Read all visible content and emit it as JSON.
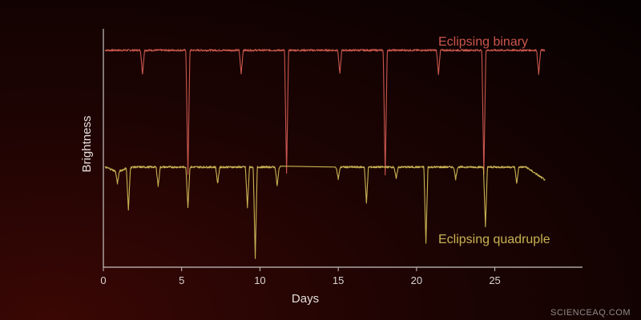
{
  "chart_data": {
    "type": "line",
    "xlabel": "Days",
    "ylabel": "Brightness",
    "xlim": [
      0,
      30.6
    ],
    "ylim": [
      0,
      1
    ],
    "xticks": [
      0,
      5,
      10,
      15,
      20,
      25
    ],
    "grid": false,
    "series": [
      {
        "name": "Eclipsing binary",
        "color": "#c9564d",
        "baseline": 0.91,
        "x_range": [
          0.1,
          28.2
        ],
        "eclipses": [
          {
            "day": 2.5,
            "depth": 0.1
          },
          {
            "day": 5.4,
            "depth": 0.52
          },
          {
            "day": 8.8,
            "depth": 0.1
          },
          {
            "day": 11.7,
            "depth": 0.52
          },
          {
            "day": 15.1,
            "depth": 0.1
          },
          {
            "day": 18.0,
            "depth": 0.52
          },
          {
            "day": 21.4,
            "depth": 0.1
          },
          {
            "day": 24.3,
            "depth": 0.52
          },
          {
            "day": 27.8,
            "depth": 0.1
          }
        ]
      },
      {
        "name": "Eclipsing quadruple",
        "color": "#c9b253",
        "baseline": 0.42,
        "x_range": [
          0.1,
          28.2
        ],
        "eclipses": [
          {
            "day": 0.9,
            "depth": 0.05
          },
          {
            "day": 1.6,
            "depth": 0.18
          },
          {
            "day": 3.5,
            "depth": 0.08
          },
          {
            "day": 5.4,
            "depth": 0.17
          },
          {
            "day": 7.3,
            "depth": 0.07
          },
          {
            "day": 9.2,
            "depth": 0.17
          },
          {
            "day": 9.7,
            "depth": 0.38
          },
          {
            "day": 11.1,
            "depth": 0.08
          },
          {
            "day": 15.0,
            "depth": 0.05
          },
          {
            "day": 16.8,
            "depth": 0.15
          },
          {
            "day": 18.7,
            "depth": 0.05
          },
          {
            "day": 20.6,
            "depth": 0.32
          },
          {
            "day": 22.5,
            "depth": 0.05
          },
          {
            "day": 24.4,
            "depth": 0.25
          },
          {
            "day": 26.4,
            "depth": 0.07
          }
        ],
        "gap": [
          11.3,
          14.8
        ]
      }
    ]
  },
  "watermark": "SCIENCEAQ.COM"
}
